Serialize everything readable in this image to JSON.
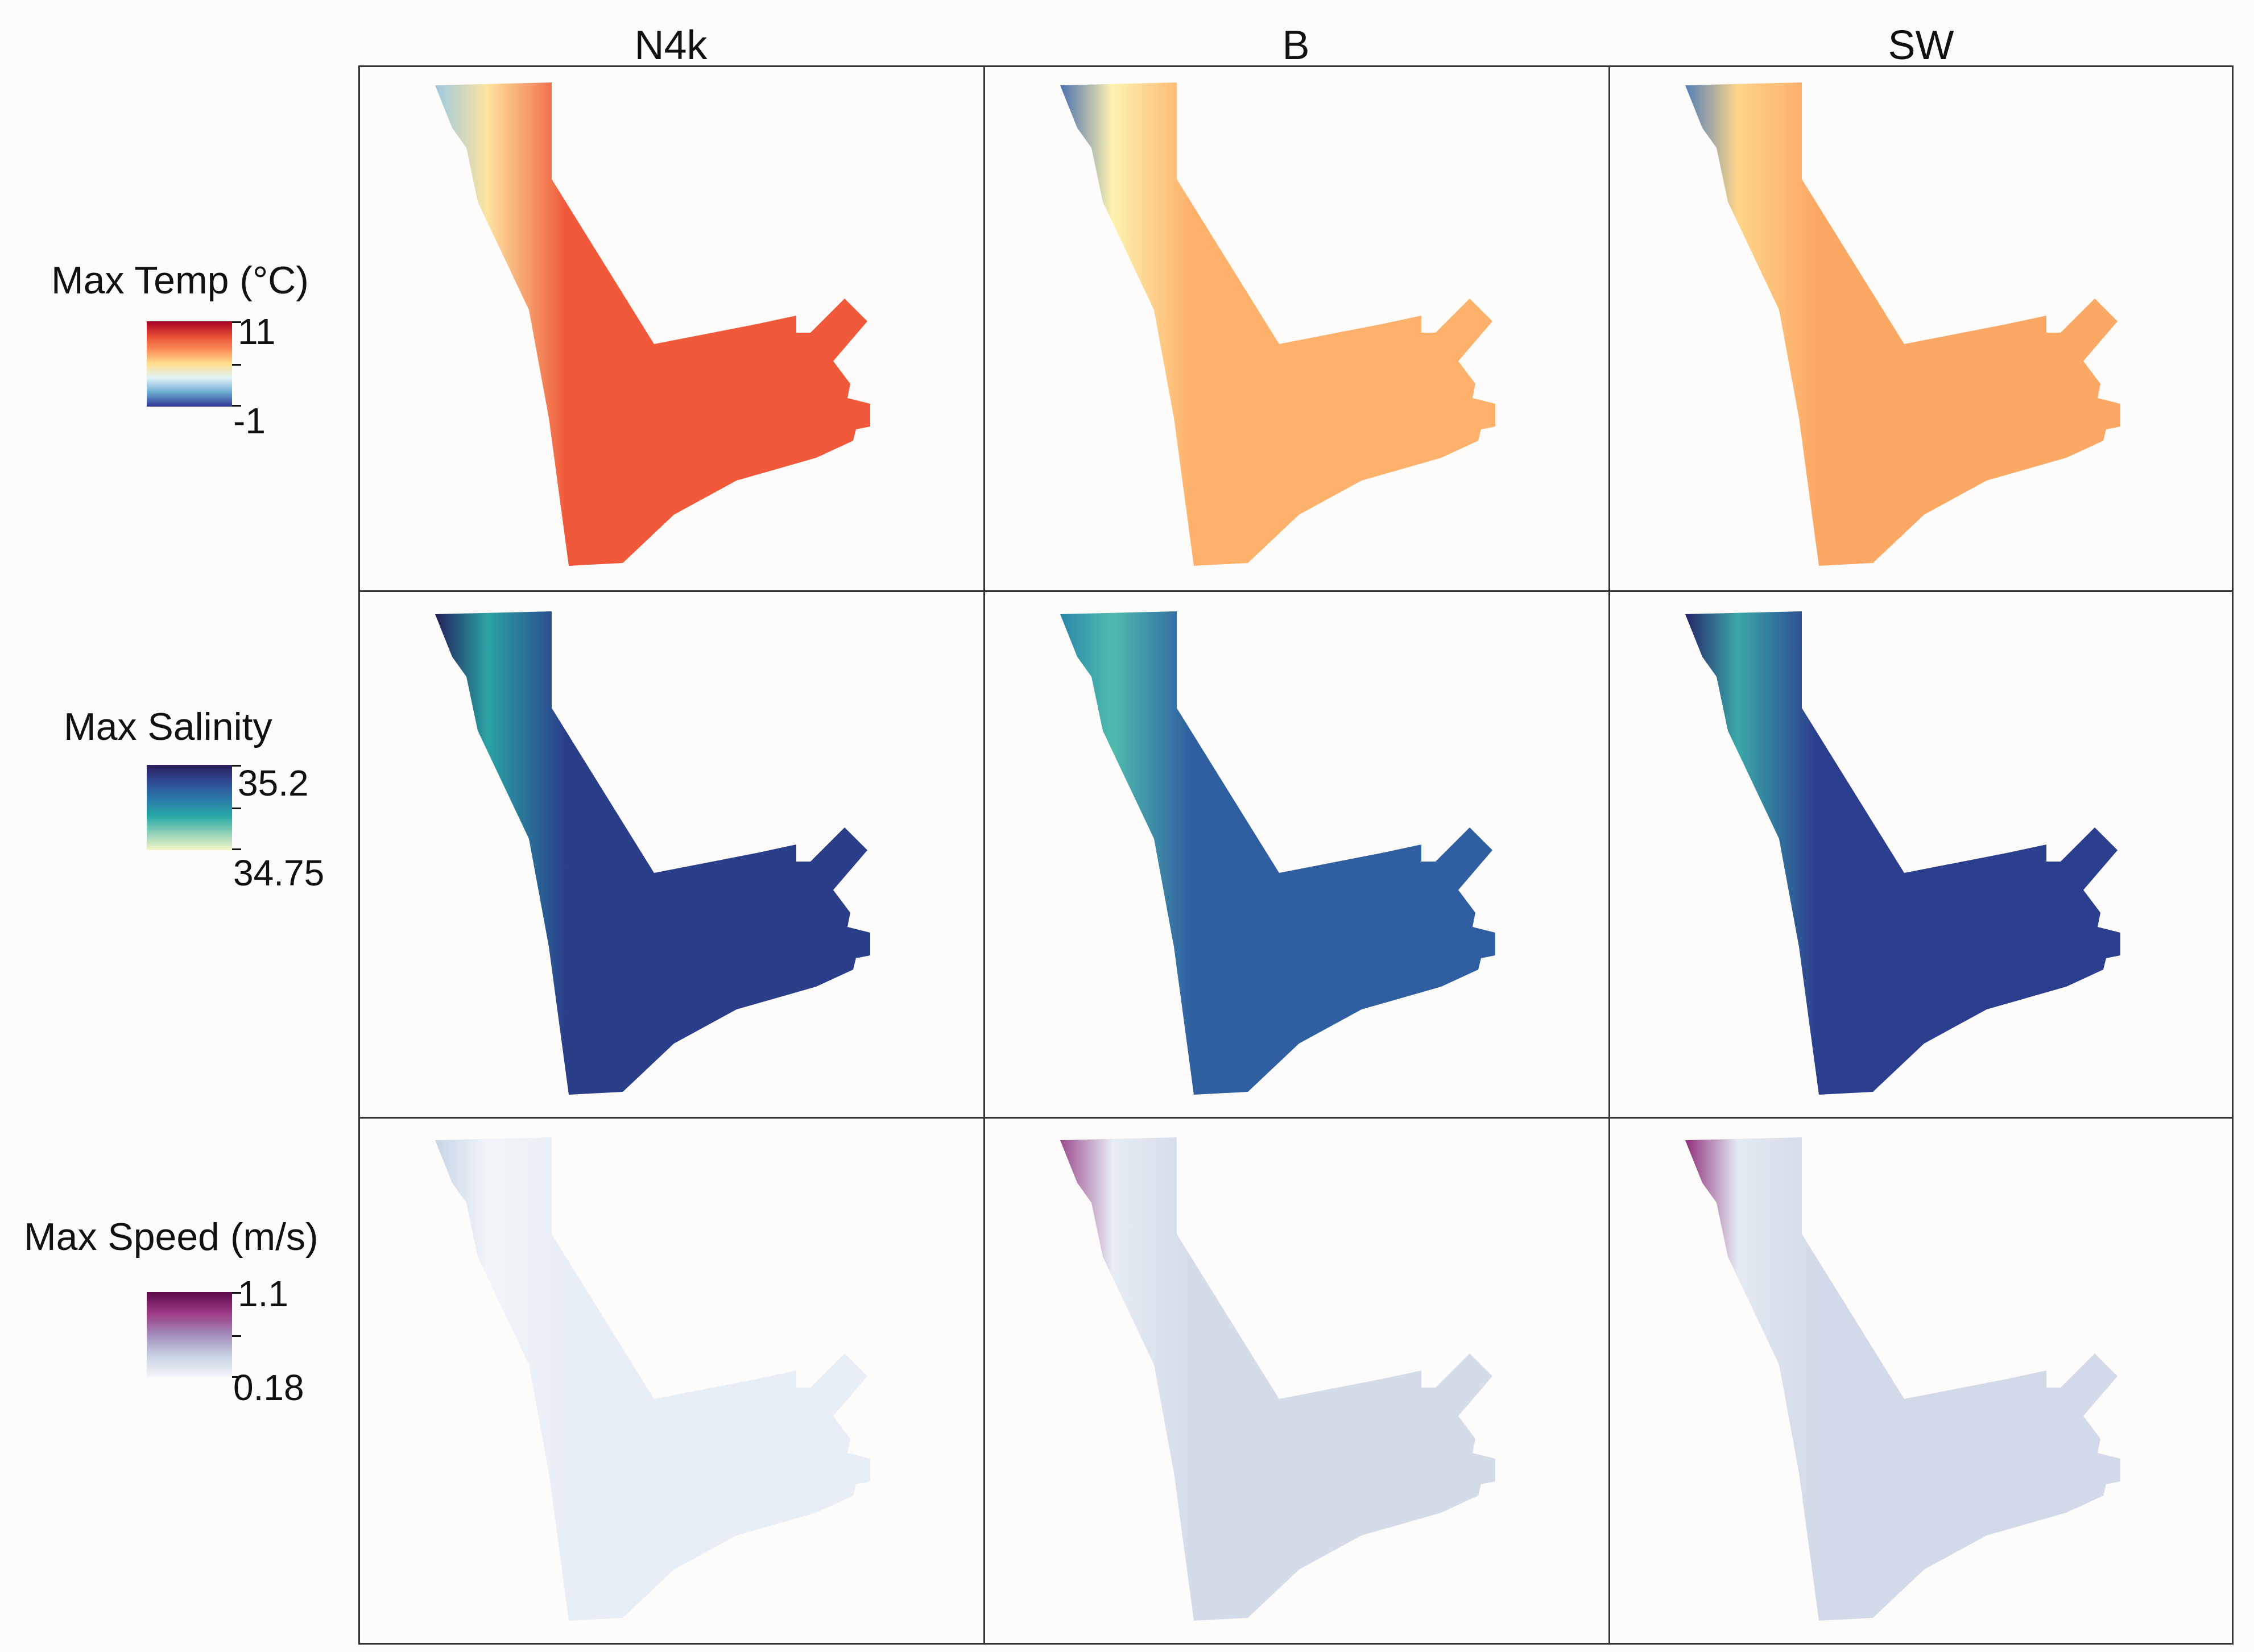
{
  "columns": [
    "N4k",
    "B",
    "SW"
  ],
  "rows": [
    {
      "title": "Max Temp (°C)",
      "max_label": "11",
      "min_label": "-1",
      "colormap": [
        "#a50026",
        "#e34a33",
        "#fc8d59",
        "#fee090",
        "#e0f3f8",
        "#6aa9cf",
        "#313695"
      ],
      "panels": [
        {
          "model": "N4k",
          "fill": "#f05a3a",
          "coast": "#fde3a0",
          "shelf": "#9ecae1"
        },
        {
          "model": "B",
          "fill": "#fdb16b",
          "coast": "#fdf2b0",
          "shelf": "#4a70b0"
        },
        {
          "model": "SW",
          "fill": "#fca865",
          "coast": "#fdd58a",
          "shelf": "#5280b8"
        }
      ]
    },
    {
      "title": "Max Salinity",
      "max_label": "35.2",
      "min_label": "34.75",
      "colormap": [
        "#2b1f5c",
        "#2f4a94",
        "#2a79a8",
        "#27a7a5",
        "#8fd0b6",
        "#f6f6c8"
      ],
      "panels": [
        {
          "model": "N4k",
          "fill": "#2b3e8a",
          "coast": "#2aa3a4",
          "shelf": "#241f5a"
        },
        {
          "model": "B",
          "fill": "#2f5fa0",
          "coast": "#4fbcae",
          "shelf": "#2a86a8"
        },
        {
          "model": "SW",
          "fill": "#2c3f8e",
          "coast": "#3aa8a8",
          "shelf": "#26256a"
        }
      ]
    },
    {
      "title": "Max Speed (m/s)",
      "max_label": "1.1",
      "min_label": "0.18",
      "colormap": [
        "#5c0a4a",
        "#9b3a86",
        "#a28cba",
        "#c8d3e3",
        "#f4f7fa"
      ],
      "panels": [
        {
          "model": "N4k",
          "fill": "#e8eef5",
          "coast": "#f2f5f9",
          "shelf": "#c6d4e6"
        },
        {
          "model": "B",
          "fill": "#d4dcea",
          "coast": "#e6ecf3",
          "shelf": "#9c4b8f"
        },
        {
          "model": "SW",
          "fill": "#d2d9e8",
          "coast": "#e4eaf2",
          "shelf": "#8e2f7c"
        }
      ]
    }
  ]
}
